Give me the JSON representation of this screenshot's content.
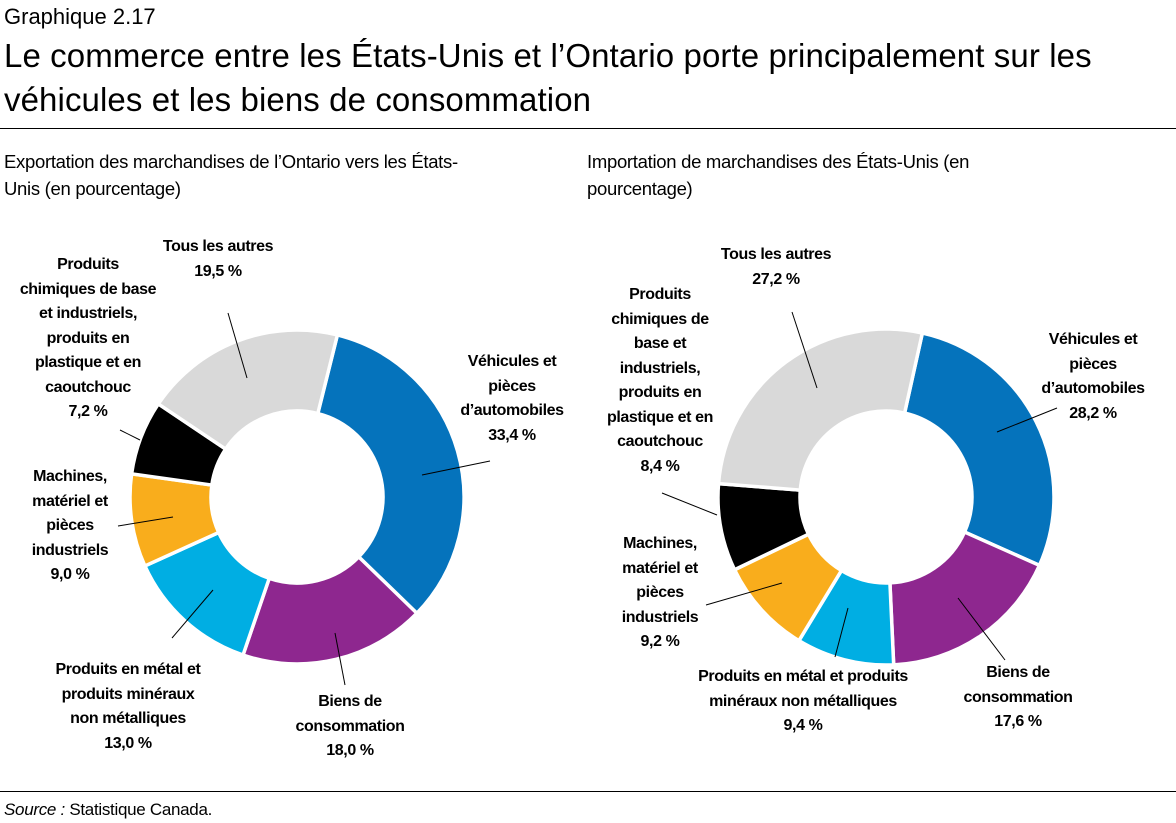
{
  "header": {
    "kicker": "Graphique 2.17",
    "title": "Le commerce entre les États-Unis et l’Ontario porte principalement sur les véhicules et les biens de consommation"
  },
  "source": {
    "label": "Source :",
    "text": " Statistique Canada."
  },
  "chart_data": [
    {
      "type": "pie",
      "donut": true,
      "title": "Exportation des marchandises de l’Ontario vers les États-Unis (en pourcentage)",
      "categories": [
        "Véhicules et pièces d’automobiles",
        "Biens de consommation",
        "Produits en métal et produits minéraux non métalliques",
        "Machines, matériel et pièces industriels",
        "Produits chimiques de base et industriels, produits en plastique et en caoutchouc",
        "Tous les autres"
      ],
      "labels": [
        "Véhicules et\npièces\nd’automobiles",
        "Biens de\nconsommation",
        "Produits en métal et\nproduits minéraux\nnon métalliques",
        "Machines,\nmatériel et\npièces\nindustriels",
        "Produits\nchimiques de base\net industriels,\nproduits en\nplastique et en\ncaoutchouc",
        "Tous les autres"
      ],
      "values": [
        33.4,
        18.0,
        13.0,
        9.0,
        7.2,
        19.5
      ],
      "value_labels": [
        "33,4 %",
        "18,0 %",
        "13,0 %",
        "9,0 %",
        "7,2 %",
        "19,5 %"
      ],
      "colors": [
        "#0573BC",
        "#8E278F",
        "#00AEE3",
        "#F9AD1C",
        "#000000",
        "#D9D9D9"
      ]
    },
    {
      "type": "pie",
      "donut": true,
      "title": "Importation de marchandises des États-Unis (en pourcentage)",
      "categories": [
        "Véhicules et pièces d’automobiles",
        "Biens de consommation",
        "Produits en métal et produits minéraux non métalliques",
        "Machines, matériel et pièces industriels",
        "Produits chimiques de base et industriels, produits en plastique et en caoutchouc",
        "Tous les autres"
      ],
      "labels": [
        "Véhicules et\npièces\nd’automobiles",
        "Biens de\nconsommation",
        "Produits en métal et produits\nminéraux non métalliques",
        "Machines,\nmatériel et\npièces\nindustriels",
        "Produits\nchimiques de\nbase et\nindustriels,\nproduits en\nplastique et en\ncaoutchouc",
        "Tous les autres"
      ],
      "values": [
        28.2,
        17.6,
        9.4,
        9.2,
        8.4,
        27.2
      ],
      "value_labels": [
        "28,2 %",
        "17,6 %",
        "9,4 %",
        "9,2 %",
        "8,4 %",
        "27,2 %"
      ],
      "colors": [
        "#0573BC",
        "#8E278F",
        "#00AEE3",
        "#F9AD1C",
        "#000000",
        "#D9D9D9"
      ]
    }
  ]
}
